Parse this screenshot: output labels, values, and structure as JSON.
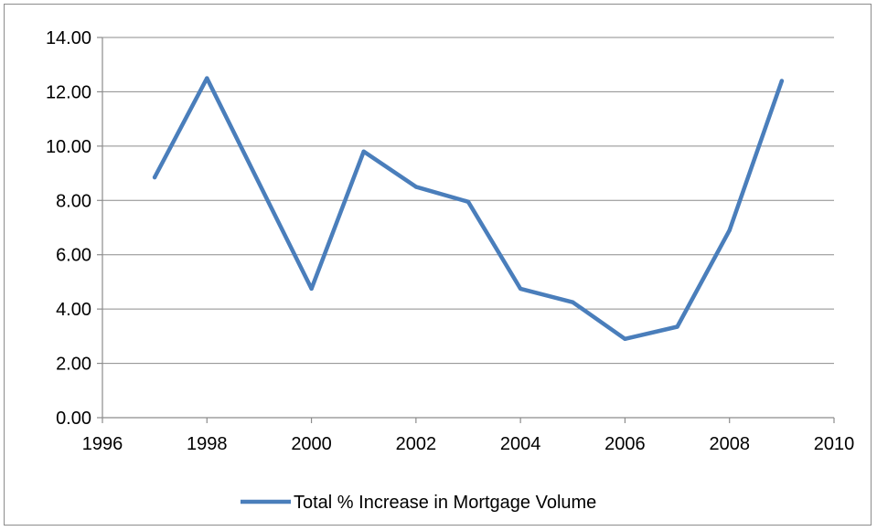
{
  "chart_data": {
    "type": "line",
    "title": "",
    "xlabel": "",
    "ylabel": "",
    "xlim": [
      1996,
      2010
    ],
    "ylim": [
      0,
      14
    ],
    "x_ticks": [
      1996,
      1998,
      2000,
      2002,
      2004,
      2006,
      2008,
      2010
    ],
    "y_ticks": [
      0,
      2,
      4,
      6,
      8,
      10,
      12,
      14
    ],
    "x_tick_labels": [
      "1996",
      "1998",
      "2000",
      "2002",
      "2004",
      "2006",
      "2008",
      "2010"
    ],
    "y_tick_labels": [
      "0.00",
      "2.00",
      "4.00",
      "6.00",
      "8.00",
      "10.00",
      "12.00",
      "14.00"
    ],
    "grid": "horizontal",
    "legend_position": "bottom",
    "series": [
      {
        "name": "Total % Increase in Mortgage Volume",
        "color": "#4a7ebb",
        "x": [
          1997,
          1998,
          2000,
          2001,
          2002,
          2003,
          2004,
          2005,
          2006,
          2007,
          2008,
          2009
        ],
        "y": [
          8.85,
          12.5,
          4.75,
          9.8,
          8.5,
          7.95,
          4.75,
          4.25,
          2.9,
          3.35,
          6.9,
          12.4
        ]
      }
    ]
  }
}
